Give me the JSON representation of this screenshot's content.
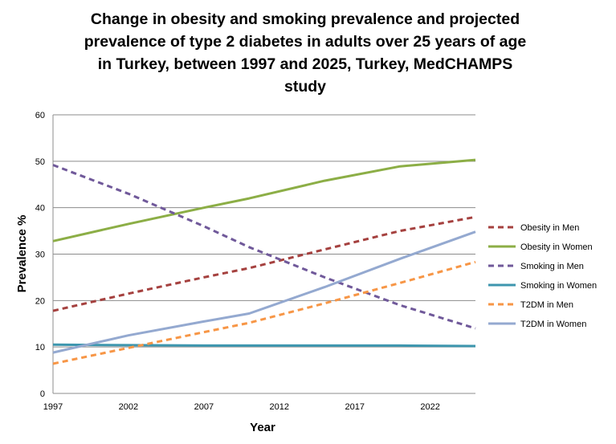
{
  "chart_data": {
    "type": "line",
    "title_lines": [
      "Change in obesity and smoking prevalence  and projected",
      "prevalence of type 2 diabetes in adults over 25 years of age",
      "in Turkey, between 1997 and 2025, Turkey, MedCHAMPS",
      "study"
    ],
    "xlabel": "Year",
    "ylabel": "Prevalence %",
    "xlim": [
      1997,
      2025
    ],
    "xticks": [
      "1997",
      "2002",
      "2007",
      "2012",
      "2017",
      "2022"
    ],
    "ylim": [
      0,
      60
    ],
    "yticks": [
      "0",
      "10",
      "20",
      "30",
      "40",
      "50",
      "60"
    ],
    "grid": "horizontal",
    "legend_position": "right",
    "series": [
      {
        "name": "Obesity in Men",
        "color": "#a5413f",
        "dash": true,
        "x": [
          1997,
          2002,
          2007,
          2010,
          2015,
          2020,
          2025
        ],
        "y": [
          17.8,
          21.5,
          25.0,
          27.0,
          31.0,
          35.0,
          38.0
        ]
      },
      {
        "name": "Obesity in Women",
        "color": "#8cae46",
        "dash": false,
        "x": [
          1997,
          2002,
          2007,
          2010,
          2015,
          2020,
          2025
        ],
        "y": [
          32.8,
          36.5,
          40.0,
          42.0,
          45.8,
          48.9,
          50.3
        ]
      },
      {
        "name": "Smoking in Men",
        "color": "#70599a",
        "dash": true,
        "x": [
          1997,
          2002,
          2007,
          2010,
          2015,
          2020,
          2025
        ],
        "y": [
          49.2,
          43.0,
          36.0,
          31.5,
          25.0,
          19.0,
          14.0
        ]
      },
      {
        "name": "Smoking in Women",
        "color": "#3d96ae",
        "dash": false,
        "x": [
          1997,
          2002,
          2007,
          2010,
          2015,
          2020,
          2025
        ],
        "y": [
          10.5,
          10.4,
          10.3,
          10.3,
          10.3,
          10.3,
          10.2
        ]
      },
      {
        "name": "T2DM in Men",
        "color": "#f79646",
        "dash": true,
        "x": [
          1997,
          2002,
          2007,
          2010,
          2015,
          2020,
          2025
        ],
        "y": [
          6.4,
          9.8,
          13.2,
          15.2,
          19.4,
          23.8,
          28.3
        ]
      },
      {
        "name": "T2DM in Women",
        "color": "#94a9d0",
        "dash": false,
        "x": [
          1997,
          2002,
          2007,
          2010,
          2015,
          2020,
          2025
        ],
        "y": [
          8.8,
          12.5,
          15.5,
          17.2,
          22.9,
          29.0,
          34.8
        ]
      }
    ]
  }
}
